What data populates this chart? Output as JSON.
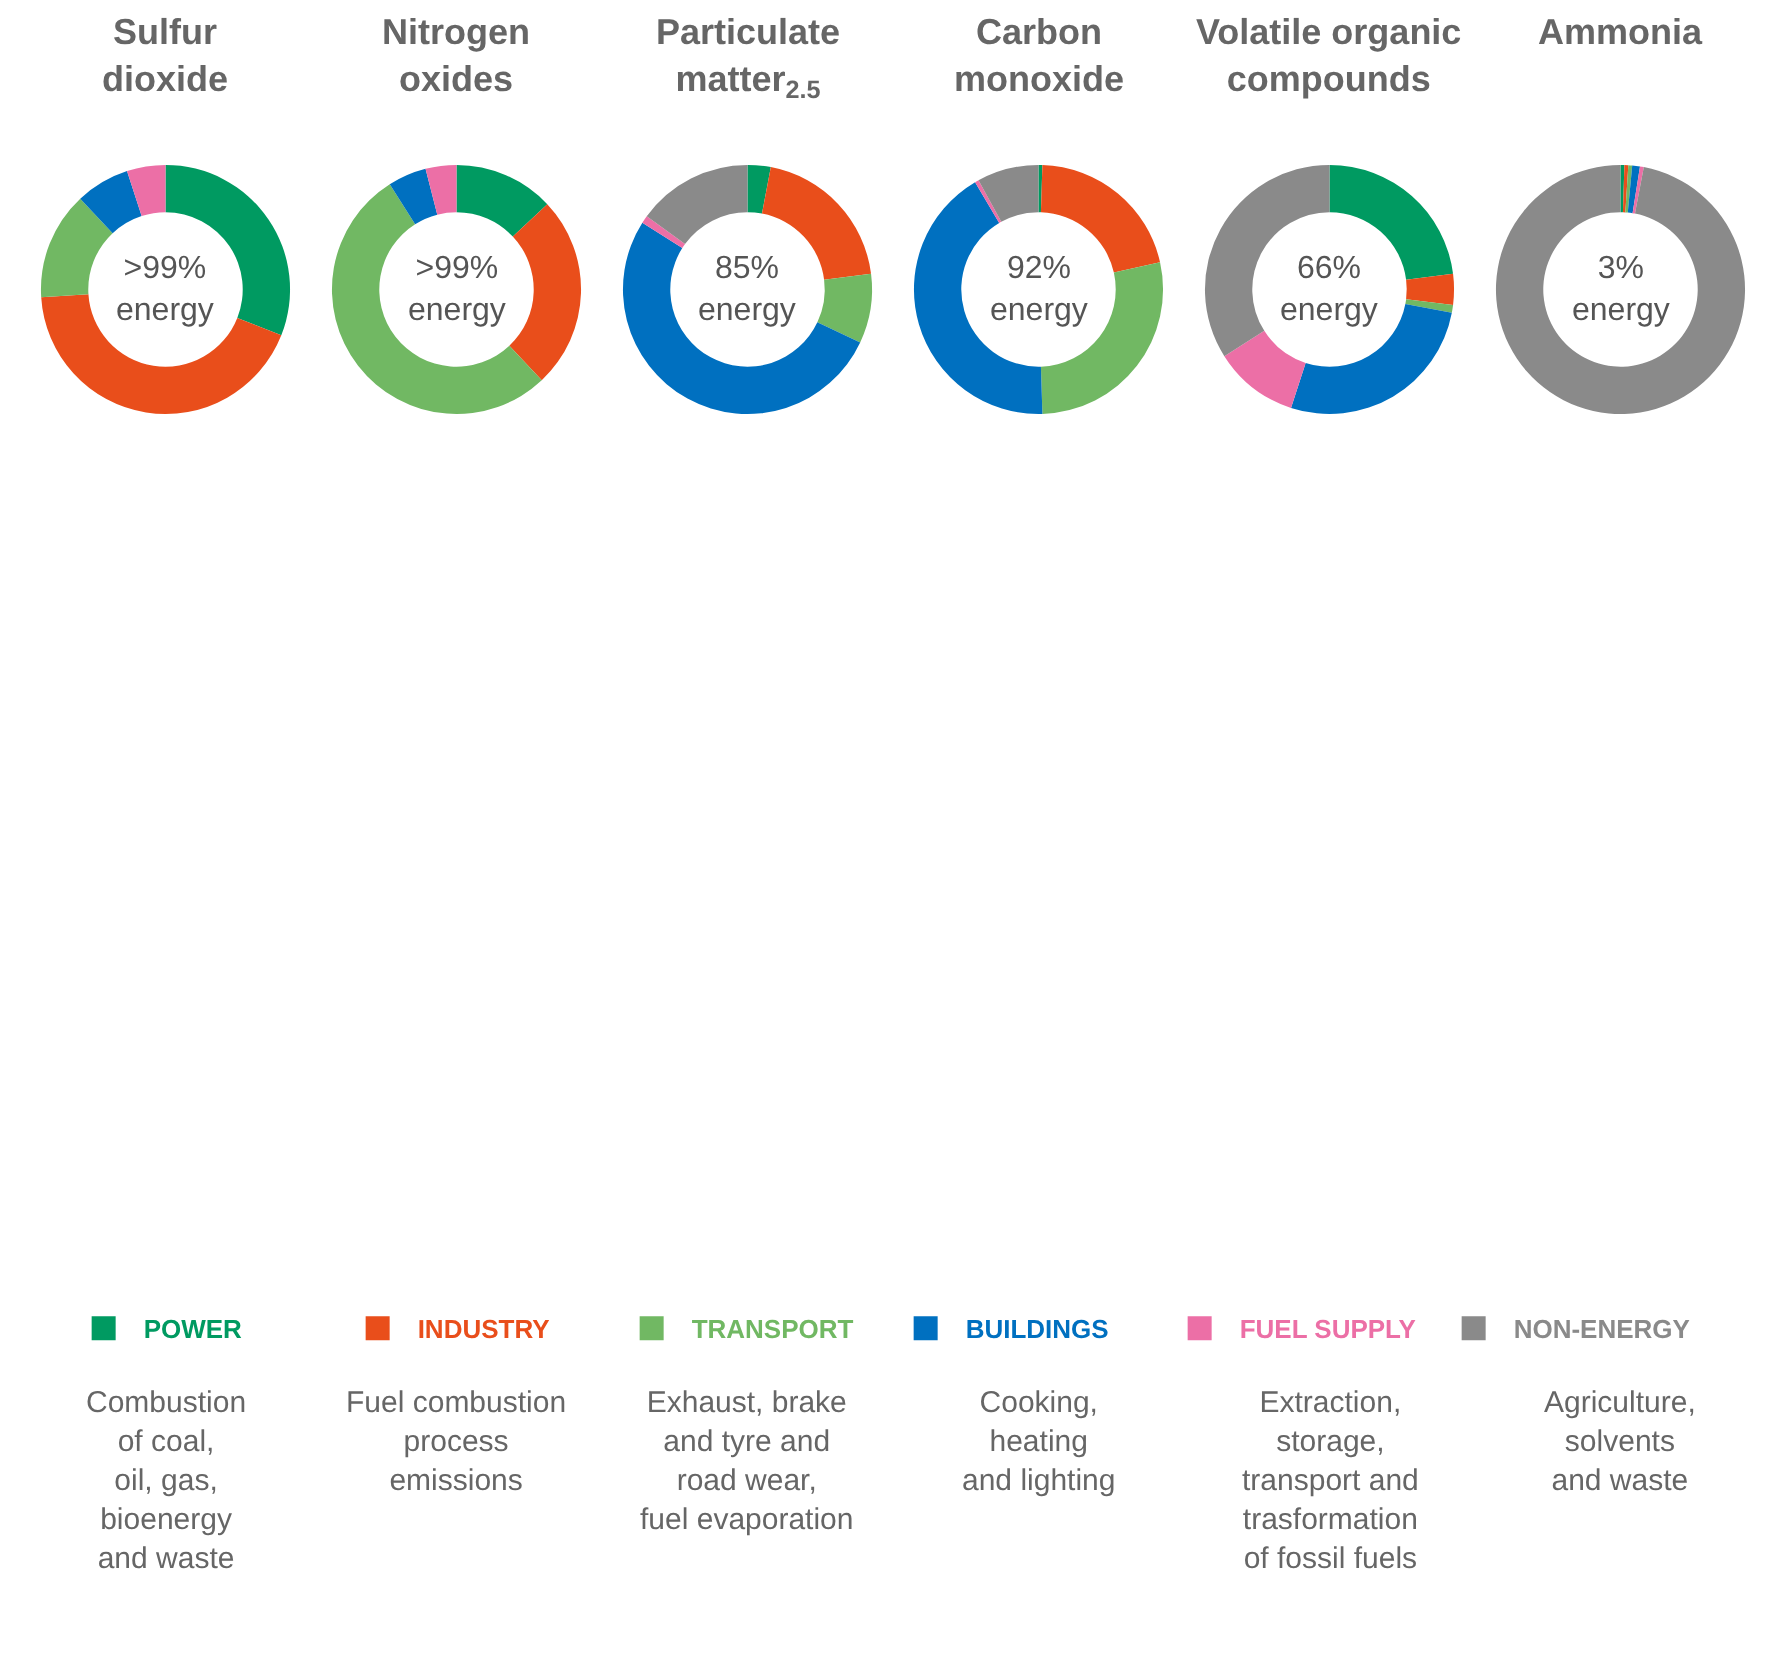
{
  "chart_data": {
    "type": "donut",
    "legend": "bottom",
    "categories": [
      "POWER",
      "INDUSTRY",
      "TRANSPORT",
      "BUILDINGS",
      "FUEL SUPPLY",
      "NON-ENERGY"
    ],
    "colors": [
      "#009a61",
      "#e94e1b",
      "#71b863",
      "#0070c0",
      "#ec6fa6",
      "#8a8a8a"
    ],
    "series": [
      {
        "name": "Sulfur\ndioxide",
        "values": [
          31,
          43,
          14,
          7,
          5,
          0
        ]
      },
      {
        "name": "Nitrogen\noxides",
        "values": [
          13,
          25,
          53,
          5,
          4,
          0
        ]
      },
      {
        "name": "Particulate\nmatter$_{2.5}$",
        "values": [
          3,
          20,
          9,
          52,
          1,
          15
        ]
      },
      {
        "name": "Carbon\nmonoxide",
        "values": [
          0.5,
          21,
          28,
          42,
          0.5,
          8
        ]
      },
      {
        "name": "Volatile organic\ncompounds",
        "values": [
          23,
          4,
          1,
          27,
          11,
          34
        ]
      },
      {
        "name": "Ammonia",
        "values": [
          0.5,
          0.5,
          0.5,
          1,
          0.5,
          97
        ]
      }
    ],
    "annotations": [
      ">99%\nenergy",
      ">99%\nenergy",
      "85%\nenergy",
      "92%\nenergy",
      "66%\nenergy",
      "3%\nenergy",
      "Combustion\nof coal,\noil, gas,\nbioenergy\nand waste",
      "Fuel combustion\nprocess\nemissions",
      "Exhaust, brake\nand tyre and\nroad wear,\nfuel evaporation",
      "Cooking,\nheating\nand lighting",
      "Extraction,\nstorage,\ntransport and\ntrasformation\nof fossil fuels",
      "Agriculture,\nsolvents\nand waste"
    ]
  }
}
